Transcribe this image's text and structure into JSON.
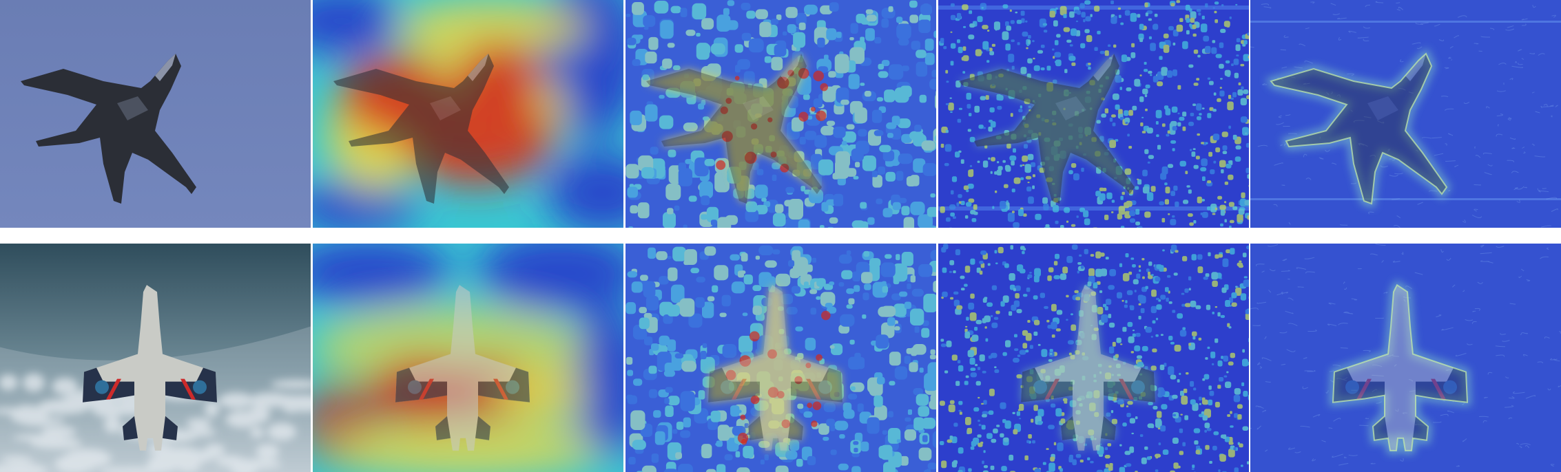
{
  "colors": {
    "background": "#ffffff",
    "sky_row1": "#6f82b8",
    "sky_row2_top": "#2f4d5c",
    "sky_row2_bottom": "#b9c7cf",
    "jet_dark": "#2b2e36",
    "jet_light": "#c9cbc6",
    "heat_low": "#2431c9",
    "heat_mid": "#39c7d3",
    "heat_warm": "#e7d84a",
    "heat_high": "#d12a1c"
  },
  "rows": [
    {
      "subject": "dark-fighter-jet",
      "tiles": [
        {
          "kind": "original-photo"
        },
        {
          "kind": "coarse-heatmap"
        },
        {
          "kind": "medium-heatmap"
        },
        {
          "kind": "fine-heatmap"
        },
        {
          "kind": "edge-heatmap"
        }
      ]
    },
    {
      "subject": "light-fighter-jet",
      "tiles": [
        {
          "kind": "original-photo"
        },
        {
          "kind": "coarse-heatmap"
        },
        {
          "kind": "medium-heatmap"
        },
        {
          "kind": "fine-heatmap"
        },
        {
          "kind": "edge-heatmap"
        }
      ]
    }
  ]
}
